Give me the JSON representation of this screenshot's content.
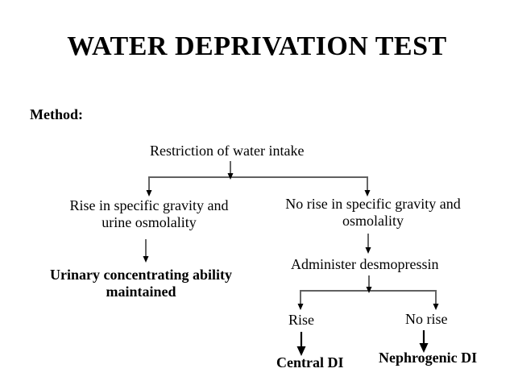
{
  "title": "WATER  DEPRIVATION  TEST",
  "method_label": "Method:",
  "nodes": {
    "restriction": "Restriction of water intake",
    "rise_sg_line1": "Rise in specific gravity and",
    "rise_sg_line2": "urine osmolality",
    "no_rise_sg_line1": "No rise in specific gravity and",
    "no_rise_sg_line2": "osmolality",
    "concentrating_line1": "Urinary concentrating ability",
    "concentrating_line2": "maintained",
    "desmopressin": "Administer desmopressin",
    "rise": "Rise",
    "no_rise": "No rise",
    "central_di": "Central DI",
    "nephrogenic_di": "Nephrogenic DI"
  }
}
